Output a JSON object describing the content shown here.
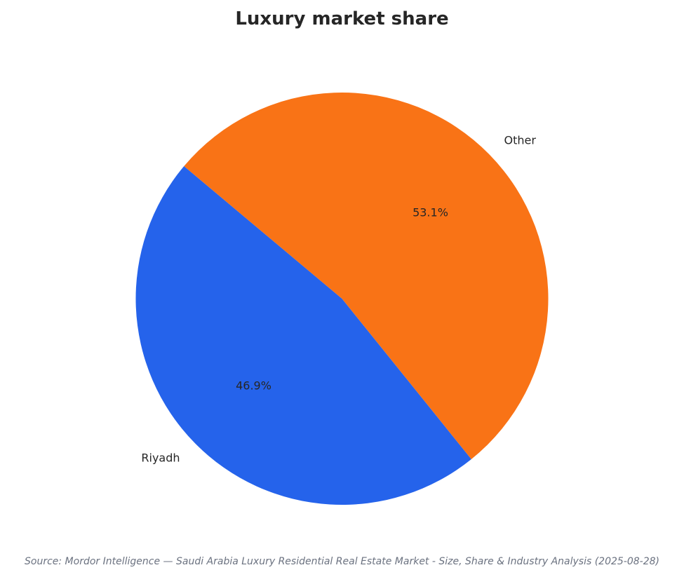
{
  "chart_data": {
    "type": "pie",
    "title": "Luxury market share",
    "slices": [
      {
        "label": "Riyadh",
        "value": 46.9,
        "pct_label": "46.9%",
        "color": "#2563eb"
      },
      {
        "label": "Other",
        "value": 53.1,
        "pct_label": "53.1%",
        "color": "#f97316"
      }
    ],
    "start_angle_deg": 140,
    "direction": "counterclockwise"
  },
  "source": "Source: Mordor Intelligence — Saudi Arabia Luxury Residential Real Estate Market - Size, Share & Industry Analysis (2025-08-28)"
}
